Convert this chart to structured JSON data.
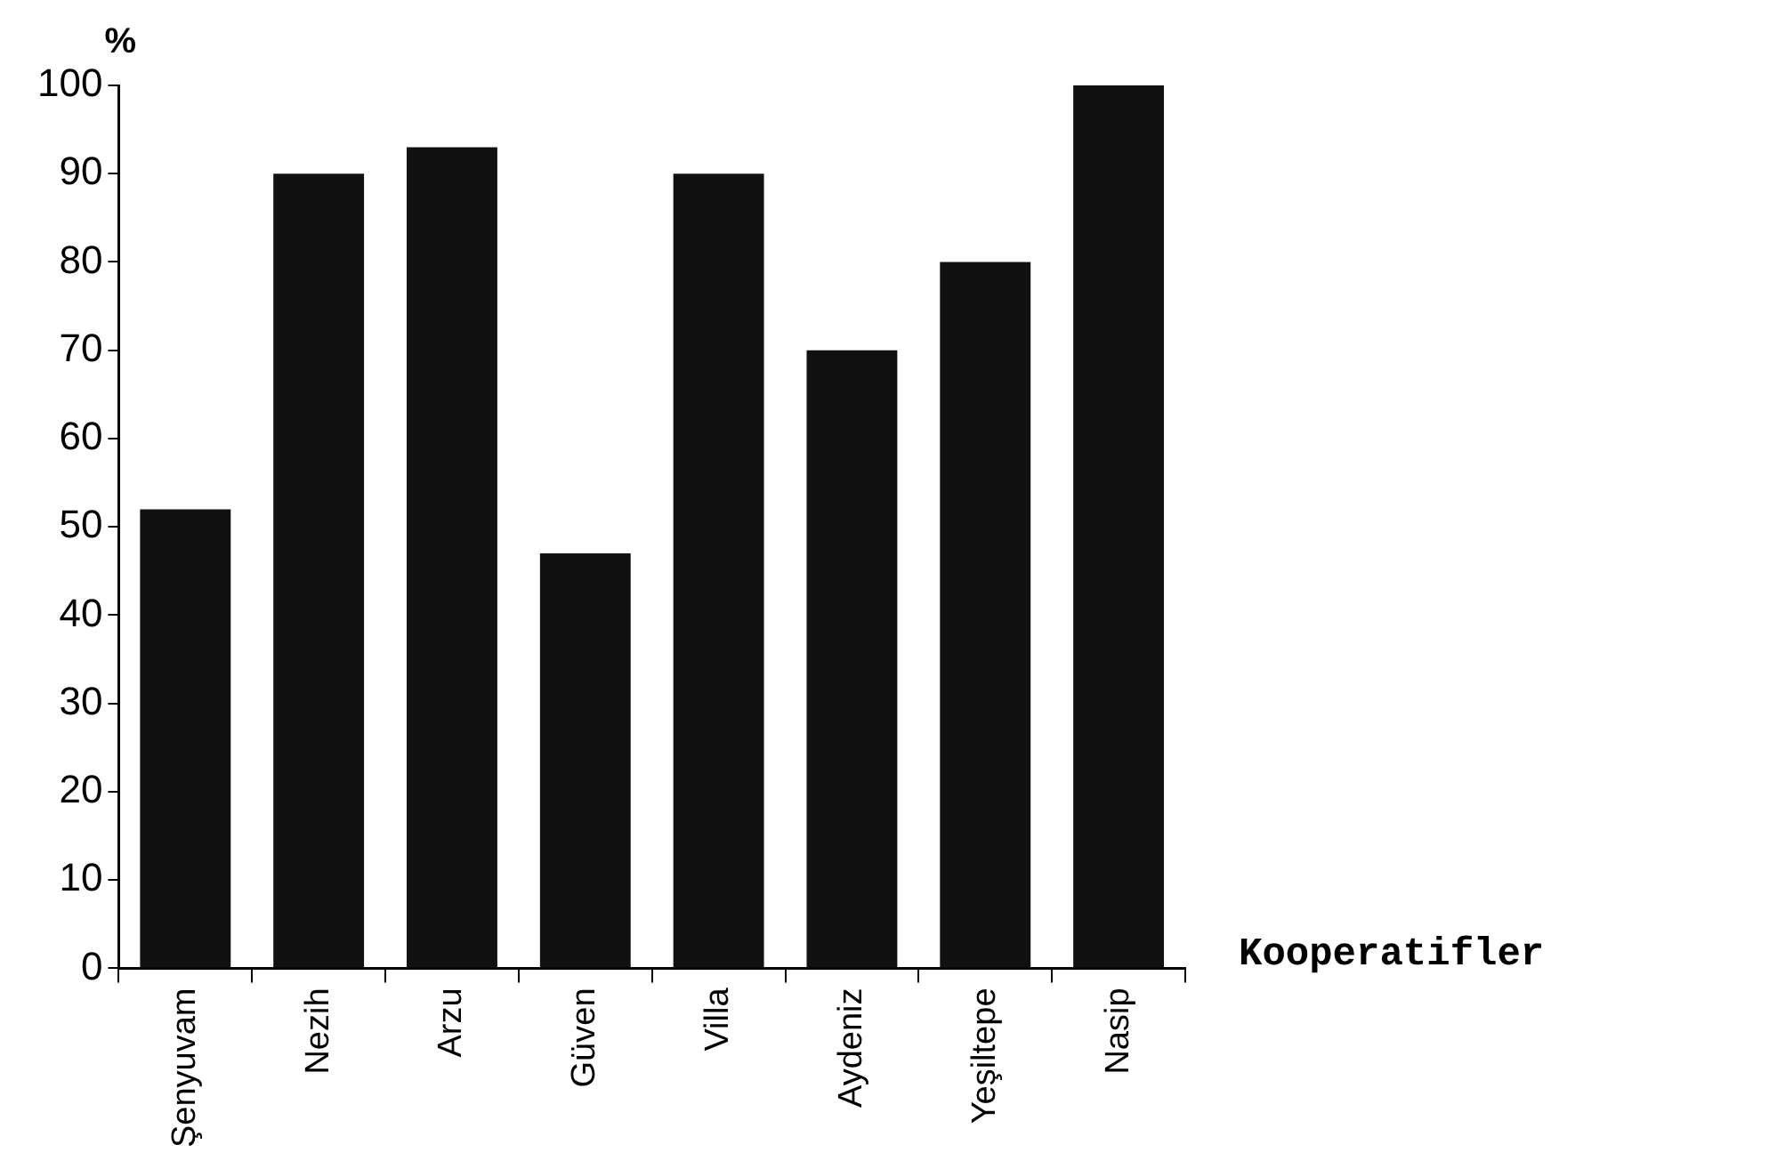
{
  "chart_data": {
    "type": "bar",
    "xlabel": "Kooperatifler",
    "ylabel": "%",
    "categories": [
      "Şenyuvam",
      "Nezih",
      "Arzu",
      "Güven",
      "Villa",
      "Aydeniz",
      "Yeşiltepe",
      "Nasip"
    ],
    "values": [
      52,
      90,
      93,
      47,
      90,
      70,
      80,
      100
    ],
    "color": "#111111",
    "ylim": [
      0,
      100
    ],
    "yticks": [
      0,
      10,
      20,
      30,
      40,
      50,
      60,
      70,
      80,
      90,
      100
    ],
    "grid": false,
    "legend": false
  }
}
